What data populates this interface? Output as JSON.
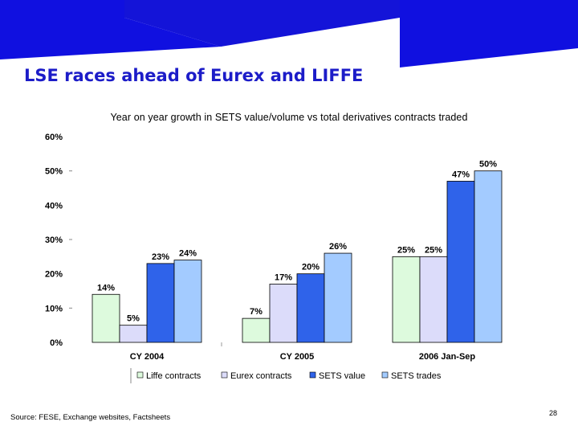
{
  "slide": {
    "title": "LSE races ahead of Eurex and LIFFE",
    "source": "Source:  FESE, Exchange websites, Factsheets",
    "page_number": "28"
  },
  "colors": {
    "banner": "#1010e0",
    "title": "#1c1cc8"
  },
  "chart_data": {
    "type": "bar",
    "title": "Year on year growth in SETS value/volume vs total derivatives contracts traded",
    "xlabel": "",
    "ylabel": "",
    "ylim": [
      0,
      60
    ],
    "yticks": [
      "0%",
      "10%",
      "20%",
      "30%",
      "40%",
      "50%",
      "60%"
    ],
    "grid": false,
    "legend_position": "bottom",
    "categories": [
      "CY 2004",
      "CY 2005",
      "2006 Jan-Sep"
    ],
    "series": [
      {
        "name": "Liffe contracts",
        "color": "#ddfadd",
        "values": [
          14,
          7,
          25
        ],
        "labels": [
          "14%",
          "7%",
          "25%"
        ]
      },
      {
        "name": "Eurex contracts",
        "color": "#dcdcfa",
        "values": [
          5,
          17,
          25
        ],
        "labels": [
          "5%",
          "17%",
          "25%"
        ]
      },
      {
        "name": "SETS value",
        "color": "#2f63ea",
        "values": [
          23,
          20,
          47
        ],
        "labels": [
          "23%",
          "20%",
          "47%"
        ]
      },
      {
        "name": "SETS trades",
        "color": "#a3cbff",
        "values": [
          24,
          26,
          50
        ],
        "labels": [
          "24%",
          "26%",
          "50%"
        ]
      }
    ]
  }
}
